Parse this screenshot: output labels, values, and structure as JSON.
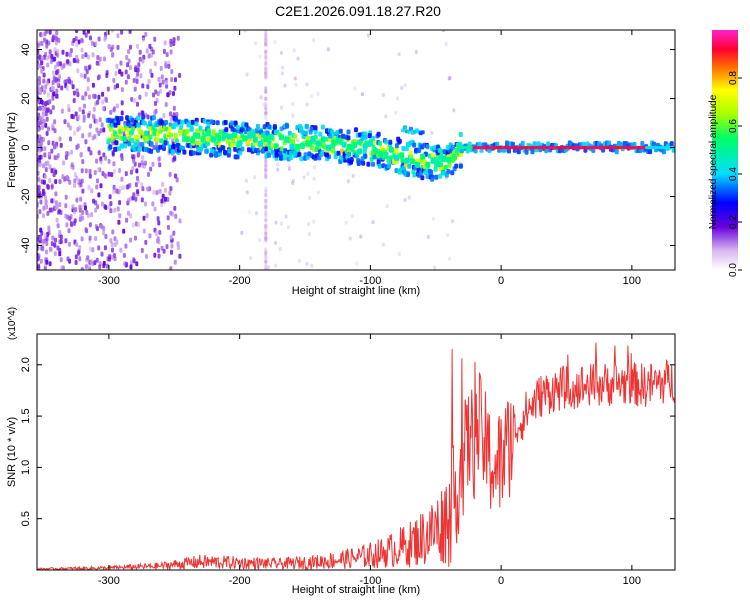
{
  "figure_title": "C2E1.2026.091.18.27.R20",
  "chart_data": [
    {
      "type": "heatmap",
      "title": "C2E1.2026.091.18.27.R20",
      "xlabel": "Height of straight line (km)",
      "ylabel": "Frequency (Hz)",
      "xlim": [
        -355,
        133
      ],
      "ylim": [
        -50,
        48
      ],
      "xticks": [
        -300,
        -200,
        -100,
        0,
        100
      ],
      "xtick_labels": [
        "-300",
        "-200",
        "-100",
        "0",
        "100"
      ],
      "yticks": [
        -40,
        -20,
        0,
        20,
        40
      ],
      "ytick_labels": [
        "-40",
        "-20",
        "0",
        "20",
        "40"
      ],
      "colorbar": {
        "label": "Normalized spectral amplitude",
        "range": [
          0,
          1
        ],
        "ticks": [
          0.0,
          0.2,
          0.4,
          0.6,
          0.8
        ],
        "tick_labels": [
          "0.0",
          "0.2",
          "0.4",
          "0.6",
          "0.8"
        ]
      },
      "ridge": {
        "x": [
          -300,
          -250,
          -200,
          -150,
          -100,
          -75,
          -55,
          -40,
          -30,
          0,
          50,
          100,
          133
        ],
        "frequency": [
          6,
          5,
          3,
          2,
          0,
          -4,
          -6,
          -6,
          -1,
          1,
          0,
          0,
          1
        ]
      },
      "bright_band": {
        "x_start": -30,
        "x_end": 133,
        "frequency": 0,
        "amplitude": 0.95
      }
    },
    {
      "type": "line",
      "xlabel": "Height of straight line (km)",
      "ylabel": "SNR (10 * v/v)",
      "y_multiplier": "(x10^4)",
      "xlim": [
        -355,
        133
      ],
      "ylim": [
        0,
        2.3
      ],
      "xticks": [
        -300,
        -200,
        -100,
        0,
        100
      ],
      "xtick_labels": [
        "-300",
        "-200",
        "-100",
        "0",
        "100"
      ],
      "yticks": [
        0.5,
        1.0,
        1.5,
        2.0
      ],
      "ytick_labels": [
        "0.5",
        "1.0",
        "1.5",
        "2.0"
      ],
      "series": [
        {
          "name": "SNR",
          "color": "#ee3333",
          "x": [
            -355,
            -300,
            -260,
            -230,
            -200,
            -170,
            -140,
            -110,
            -90,
            -70,
            -55,
            -45,
            -38,
            -32,
            -28,
            -24,
            -20,
            -17,
            -14,
            -10,
            -5,
            0,
            5,
            10,
            20,
            30,
            40,
            50,
            70,
            90,
            110,
            133
          ],
          "values": [
            0.01,
            0.02,
            0.04,
            0.08,
            0.07,
            0.06,
            0.08,
            0.12,
            0.17,
            0.25,
            0.35,
            0.45,
            0.6,
            0.9,
            1.1,
            1.3,
            1.2,
            1.4,
            1.3,
            1.1,
            1.0,
            1.05,
            1.2,
            1.35,
            1.55,
            1.7,
            1.75,
            1.78,
            1.8,
            1.82,
            1.8,
            1.85
          ]
        }
      ]
    }
  ],
  "colors": {
    "line": "#ee3333",
    "axis": "#000000",
    "background": "#ffffff"
  }
}
